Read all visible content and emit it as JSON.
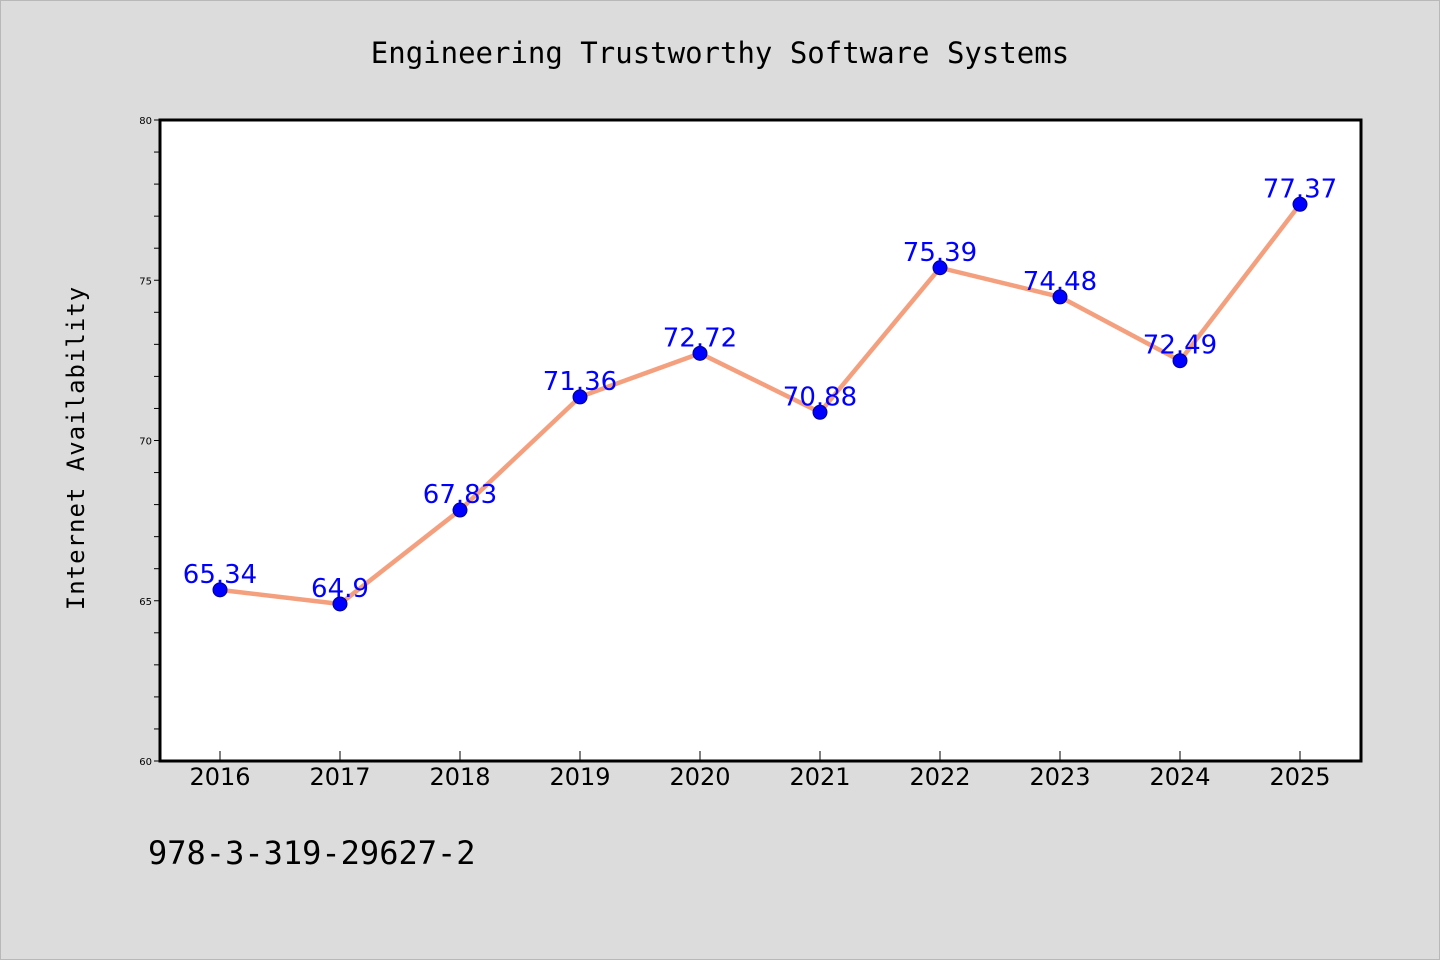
{
  "chart_data": {
    "type": "line",
    "title": "Engineering Trustworthy Software Systems",
    "xlabel": "",
    "ylabel": "Internet Availability",
    "x": [
      "2016",
      "2017",
      "2018",
      "2019",
      "2020",
      "2021",
      "2022",
      "2023",
      "2024",
      "2025"
    ],
    "series": [
      {
        "values": [
          65.34,
          64.9,
          67.83,
          71.36,
          72.72,
          70.88,
          75.39,
          74.48,
          72.49,
          77.37
        ],
        "labels": [
          "65.34",
          "64.9",
          "67.83",
          "71.36",
          "72.72",
          "70.88",
          "75.39",
          "74.48",
          "72.49",
          "77.37"
        ]
      }
    ],
    "ylim": [
      60,
      80
    ],
    "yticks": [
      "60",
      "65",
      "70",
      "75",
      "80"
    ],
    "grid": false,
    "colors": {
      "line": "#f4a07e",
      "marker": "#0000ff",
      "label": "#0000ff",
      "background": "#dcdcdc",
      "plot_area": "#ffffff"
    }
  },
  "footer": {
    "text": "978-3-319-29627-2"
  }
}
